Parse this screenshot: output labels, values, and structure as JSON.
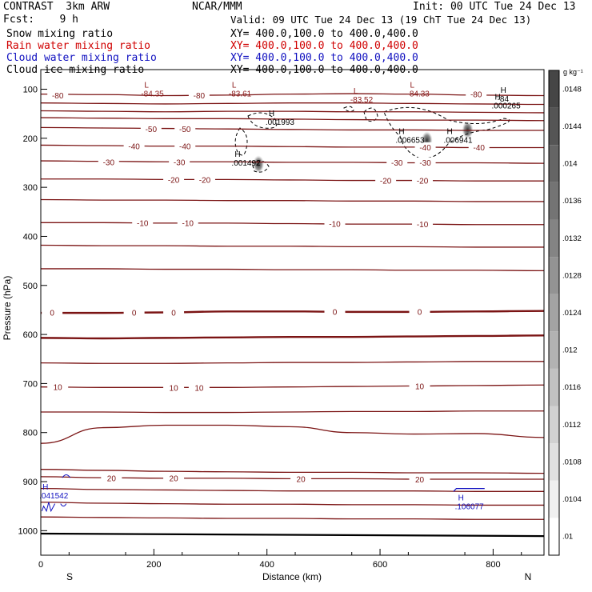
{
  "header": {
    "title_left": "CONTRAST  3km ARW",
    "title_center": "NCAR/MMM",
    "init": "Init: 00 UTC Tue 24 Dec 13",
    "fcst": "Fcst:    9 h",
    "valid": "Valid: 09 UTC Tue 24 Dec 13 (19 ChT Tue 24 Dec 13)",
    "fields": [
      {
        "name": "Snow mixing ratio",
        "xy": "XY= 400.0,100.0 to 400.0,400.0",
        "color": "#000000"
      },
      {
        "name": "Rain water mixing ratio",
        "xy": "XY= 400.0,100.0 to 400.0,400.0",
        "color": "#d00000"
      },
      {
        "name": "Cloud water mixing ratio",
        "xy": "XY= 400.0,100.0 to 400.0,400.0",
        "color": "#1010c0"
      },
      {
        "name": "Cloud ice mixing ratio",
        "xy": "XY= 400.0,100.0 to 400.0,400.0",
        "color": "#000000"
      }
    ]
  },
  "chart_data": {
    "type": "cross-section",
    "xlabel": "Distance (km)",
    "ylabel": "Pressure (hPa)",
    "xlim": [
      0,
      890
    ],
    "ylim": [
      1050,
      60
    ],
    "x_ticks": [
      0,
      200,
      400,
      600,
      800
    ],
    "y_ticks": [
      100,
      200,
      300,
      400,
      500,
      600,
      700,
      800,
      900,
      1000
    ],
    "end_labels": {
      "left": "S",
      "right": "N"
    },
    "colorbar": {
      "unit": "g kg⁻¹",
      "values": [
        0.0148,
        0.0144,
        0.014,
        0.0136,
        0.0132,
        0.0128,
        0.0124,
        0.012,
        0.0116,
        0.0112,
        0.0108,
        0.0104,
        0.01
      ],
      "labels": [
        ".0148",
        ".0144",
        ".014",
        ".0136",
        ".0132",
        ".0128",
        ".0124",
        ".012",
        ".0116",
        ".0112",
        ".0108",
        ".0104",
        ".01"
      ]
    },
    "temperature_contours": [
      {
        "value": -80,
        "p": [
          110,
          111,
          113,
          112,
          110,
          109,
          110,
          112,
          113
        ]
      },
      {
        "value": -70,
        "p": [
          128,
          129,
          130,
          129,
          128,
          128,
          129,
          130,
          131
        ]
      },
      {
        "value": -60,
        "p": [
          144,
          145,
          146,
          145,
          145,
          146,
          146,
          147,
          148
        ]
      },
      {
        "value": -50,
        "p": [
          158,
          159,
          160,
          160,
          161,
          162,
          163,
          163,
          164
        ]
      },
      {
        "value": -50,
        "p": [
          178,
          179,
          180,
          181,
          182,
          183,
          183,
          184,
          184
        ]
      },
      {
        "value": -40,
        "p": [
          214,
          215,
          216,
          216,
          217,
          218,
          218,
          219,
          219
        ]
      },
      {
        "value": -30,
        "p": [
          246,
          247,
          248,
          248,
          249,
          249,
          250,
          250,
          251
        ]
      },
      {
        "value": -20,
        "p": [
          283,
          283,
          284,
          284,
          285,
          286,
          286,
          287,
          287
        ]
      },
      {
        "value": -20,
        "p": [
          325,
          326,
          326,
          327,
          327,
          328,
          328,
          329,
          329
        ]
      },
      {
        "value": -10,
        "p": [
          372,
          372,
          373,
          373,
          374,
          375,
          375,
          376,
          376
        ]
      },
      {
        "value": -10,
        "p": [
          418,
          419,
          419,
          420,
          420,
          421,
          421,
          422,
          422
        ]
      },
      {
        "value": -10,
        "p": [
          466,
          466,
          467,
          467,
          468,
          468,
          469,
          469,
          470
        ]
      },
      {
        "value": 0,
        "p": [
          556,
          556,
          555,
          553,
          553,
          554,
          554,
          553,
          552
        ]
      },
      {
        "value": 0,
        "p": [
          607,
          608,
          607,
          606,
          605,
          605,
          604,
          603,
          602
        ]
      },
      {
        "value": 10,
        "p": [
          658,
          659,
          659,
          658,
          657,
          657,
          656,
          655,
          655
        ]
      },
      {
        "value": 10,
        "p": [
          707,
          708,
          708,
          708,
          707,
          706,
          705,
          704,
          703
        ]
      },
      {
        "value": 10,
        "p": [
          758,
          758,
          759,
          759,
          758,
          757,
          757,
          756,
          756
        ]
      },
      {
        "value": 20,
        "p": [
          822,
          790,
          785,
          785,
          788,
          800,
          803,
          802,
          810
        ]
      },
      {
        "value": 20,
        "p": [
          875,
          877,
          879,
          880,
          881,
          881,
          882,
          882,
          883
        ]
      },
      {
        "value": 20,
        "p": [
          890,
          892,
          893,
          893,
          894,
          894,
          895,
          895,
          895
        ]
      },
      {
        "value": 20,
        "p": [
          914,
          916,
          917,
          918,
          919,
          919,
          919,
          920,
          920
        ]
      },
      {
        "value": 20,
        "p": [
          942,
          944,
          945,
          946,
          946,
          947,
          947,
          948,
          948
        ]
      },
      {
        "value": 20,
        "p": [
          972,
          973,
          974,
          975,
          975,
          976,
          976,
          977,
          977
        ]
      }
    ],
    "contour_x": [
      0,
      110,
      220,
      330,
      440,
      550,
      660,
      770,
      890
    ],
    "contour_labels": [
      {
        "text": "-80",
        "x": 30,
        "p": 112
      },
      {
        "text": "-80",
        "x": 280,
        "p": 112
      },
      {
        "text": "-80",
        "x": 770,
        "p": 110
      },
      {
        "text": "-50",
        "x": 195,
        "p": 181
      },
      {
        "text": "-50",
        "x": 255,
        "p": 181
      },
      {
        "text": "-40",
        "x": 165,
        "p": 216
      },
      {
        "text": "-40",
        "x": 255,
        "p": 216
      },
      {
        "text": "-40",
        "x": 680,
        "p": 218
      },
      {
        "text": "-40",
        "x": 775,
        "p": 218
      },
      {
        "text": "-30",
        "x": 120,
        "p": 248
      },
      {
        "text": "-30",
        "x": 245,
        "p": 248
      },
      {
        "text": "-30",
        "x": 630,
        "p": 249
      },
      {
        "text": "-30",
        "x": 680,
        "p": 249
      },
      {
        "text": "-20",
        "x": 235,
        "p": 284
      },
      {
        "text": "-20",
        "x": 290,
        "p": 284
      },
      {
        "text": "-20",
        "x": 610,
        "p": 286
      },
      {
        "text": "-20",
        "x": 675,
        "p": 286
      },
      {
        "text": "-10",
        "x": 180,
        "p": 372
      },
      {
        "text": "-10",
        "x": 260,
        "p": 372
      },
      {
        "text": "-10",
        "x": 520,
        "p": 374
      },
      {
        "text": "-10",
        "x": 675,
        "p": 375
      },
      {
        "text": "0",
        "x": 20,
        "p": 555
      },
      {
        "text": "0",
        "x": 165,
        "p": 555
      },
      {
        "text": "0",
        "x": 235,
        "p": 555
      },
      {
        "text": "0",
        "x": 520,
        "p": 553
      },
      {
        "text": "0",
        "x": 670,
        "p": 553
      },
      {
        "text": "10",
        "x": 30,
        "p": 707
      },
      {
        "text": "10",
        "x": 235,
        "p": 708
      },
      {
        "text": "10",
        "x": 280,
        "p": 708
      },
      {
        "text": "10",
        "x": 670,
        "p": 705
      },
      {
        "text": "20",
        "x": 125,
        "p": 893
      },
      {
        "text": "20",
        "x": 235,
        "p": 893
      },
      {
        "text": "20",
        "x": 460,
        "p": 894
      },
      {
        "text": "20",
        "x": 670,
        "p": 895
      }
    ],
    "extrema": [
      {
        "type": "L",
        "value": "-84.35",
        "x": 200,
        "p": 97,
        "color": "#8b1a1a"
      },
      {
        "type": "L",
        "value": "-83.61",
        "x": 355,
        "p": 97,
        "color": "#8b1a1a"
      },
      {
        "type": "L",
        "value": "-83.52",
        "x": 570,
        "p": 109,
        "color": "#8b1a1a"
      },
      {
        "type": "L",
        "value": "-84.33",
        "x": 670,
        "p": 97,
        "color": "#8b1a1a"
      },
      {
        "type": "H",
        "value": "-84",
        "x": 830,
        "p": 107,
        "color": "#000000"
      },
      {
        "type": "H",
        "value": ".000265",
        "x": 820,
        "p": 121,
        "color": "#000000"
      },
      {
        "type": "H",
        "value": ".001993",
        "x": 420,
        "p": 155,
        "color": "#000000"
      },
      {
        "type": "H",
        "value": ".006653",
        "x": 650,
        "p": 191,
        "color": "#000000"
      },
      {
        "type": "H",
        "value": ".006941",
        "x": 735,
        "p": 191,
        "color": "#000000"
      },
      {
        "type": "H",
        "value": ".001492",
        "x": 360,
        "p": 238,
        "color": "#000000"
      },
      {
        "type": "H",
        "value": ".041542",
        "x": 20,
        "p": 916,
        "color": "#1010c0"
      },
      {
        "type": "H",
        "value": ".106077",
        "x": 755,
        "p": 938,
        "color": "#1010c0"
      }
    ],
    "ice_blobs": [
      {
        "x": 385,
        "p": 253
      },
      {
        "x": 683,
        "p": 204
      },
      {
        "x": 755,
        "p": 183
      }
    ]
  }
}
